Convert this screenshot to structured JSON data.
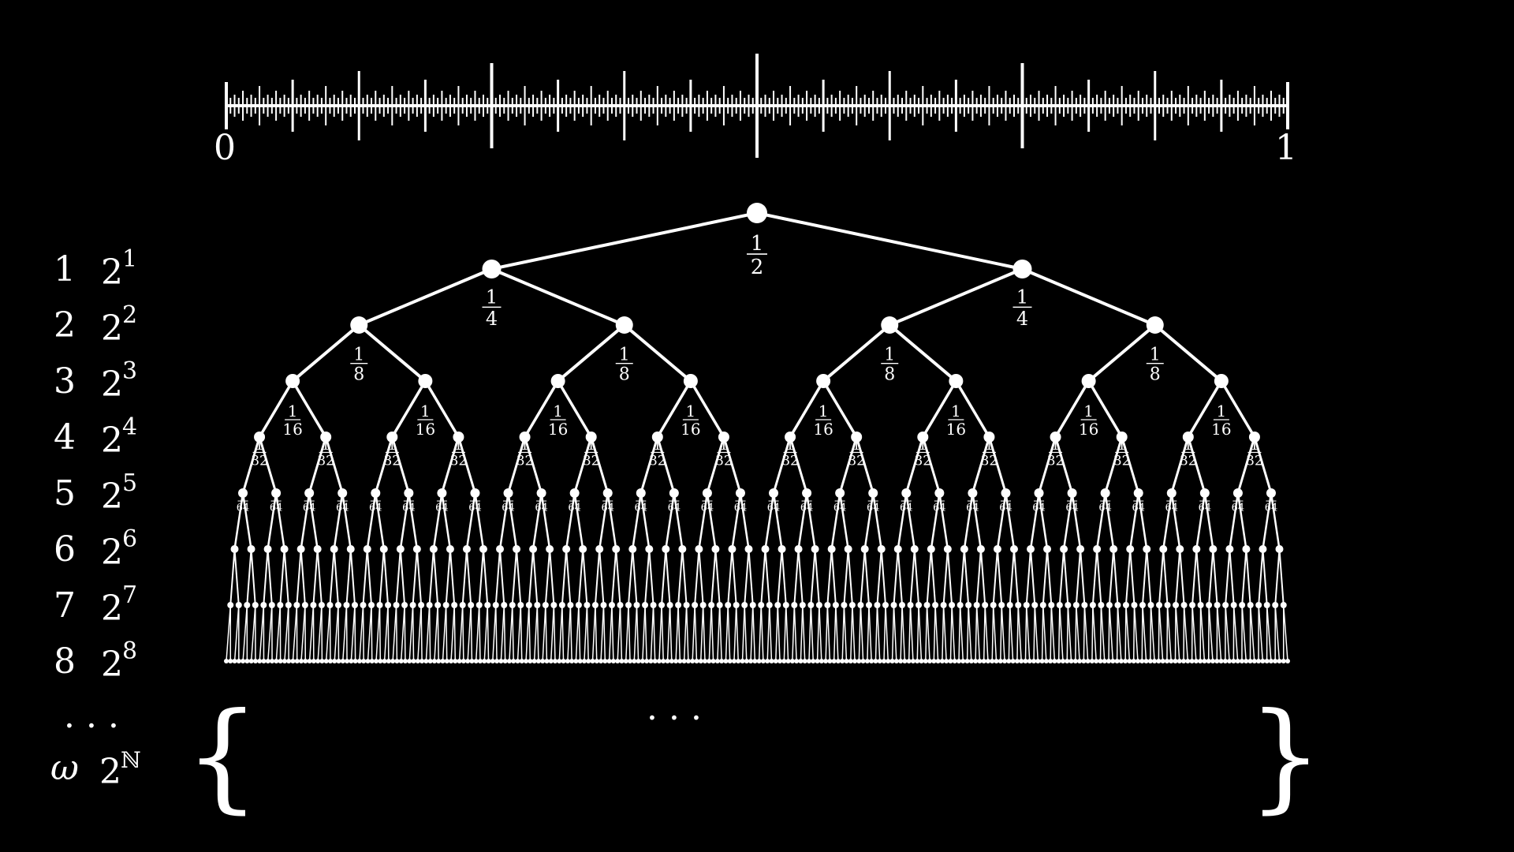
{
  "number_line": {
    "left_label": "0",
    "right_label": "1",
    "tick_levels": 8
  },
  "tree": {
    "depth": 8,
    "fraction_numerator": "1",
    "level_denominators": [
      "2",
      "4",
      "8",
      "16",
      "32",
      "64"
    ]
  },
  "rows": [
    {
      "index": "1",
      "base": "2",
      "exp": "1"
    },
    {
      "index": "2",
      "base": "2",
      "exp": "2"
    },
    {
      "index": "3",
      "base": "2",
      "exp": "3"
    },
    {
      "index": "4",
      "base": "2",
      "exp": "4"
    },
    {
      "index": "5",
      "base": "2",
      "exp": "5"
    },
    {
      "index": "6",
      "base": "2",
      "exp": "6"
    },
    {
      "index": "7",
      "base": "2",
      "exp": "7"
    },
    {
      "index": "8",
      "base": "2",
      "exp": "8"
    }
  ],
  "limit_row": {
    "ellipsis": "· · ·",
    "index": "ω",
    "base": "2",
    "exp": "ℕ"
  },
  "set": {
    "open_brace": "{",
    "close_brace": "}",
    "middle_ellipsis": "· · ·"
  },
  "colors": {
    "background": "#000000",
    "foreground": "#ffffff"
  }
}
